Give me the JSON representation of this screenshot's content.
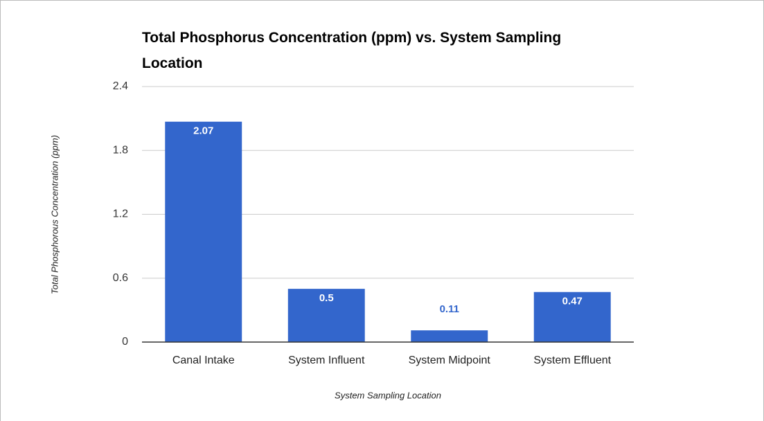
{
  "chart_data": {
    "type": "bar",
    "title": "Total Phosphorus Concentration (ppm) vs. System Sampling Location",
    "x_label": "System Sampling Location",
    "y_label": "Total Phosphorous Concentration (ppm)",
    "categories": [
      "Canal Intake",
      "System Influent",
      "System Midpoint",
      "System Effluent"
    ],
    "values": [
      2.07,
      0.5,
      0.11,
      0.47
    ],
    "color": "#3366cc",
    "ylim": [
      0,
      2.4
    ],
    "yticks": [
      0,
      0.6,
      1.2,
      1.8,
      2.4
    ],
    "grid": true
  }
}
